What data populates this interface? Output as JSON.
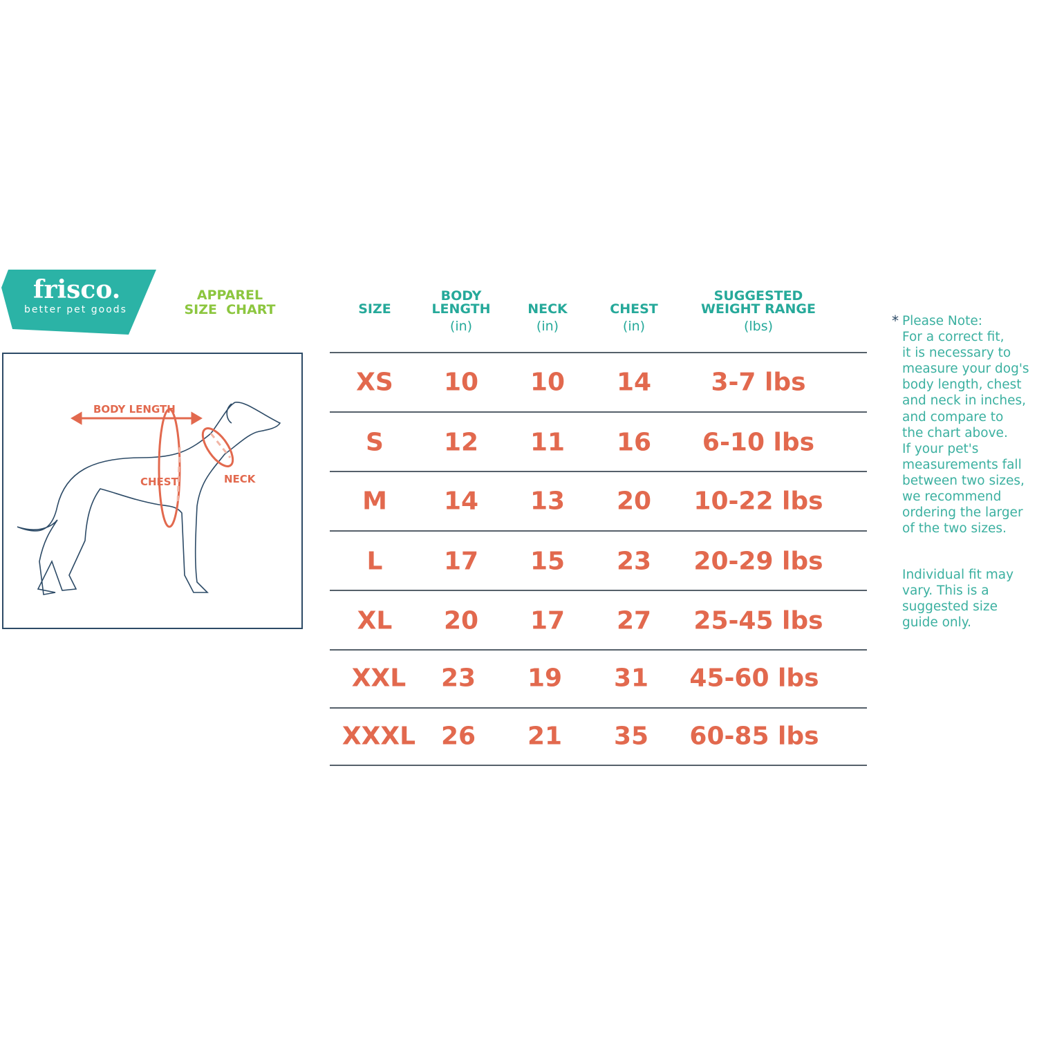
{
  "brand": {
    "name": "frisco.",
    "tagline": "better pet goods",
    "color": "#2bb3a6"
  },
  "title": {
    "line1": "APPAREL",
    "line2": "SIZE  CHART",
    "color": "#8cc63f"
  },
  "diagram": {
    "labels": {
      "body_length": "BODY LENGTH",
      "chest": "CHEST",
      "neck": "NECK"
    },
    "accent": "#e2694e"
  },
  "table": {
    "headers": [
      {
        "title": "SIZE",
        "unit": ""
      },
      {
        "title": "BODY LENGTH",
        "unit": "(in)"
      },
      {
        "title": "NECK",
        "unit": "(in)"
      },
      {
        "title": "CHEST",
        "unit": "(in)"
      },
      {
        "title": "SUGGESTED WEIGHT RANGE",
        "unit": "(lbs)"
      }
    ],
    "rows": [
      [
        "XS",
        "10",
        "10",
        "14",
        "3-7 lbs"
      ],
      [
        "S",
        "12",
        "11",
        "16",
        "6-10 lbs"
      ],
      [
        "M",
        "14",
        "13",
        "20",
        "10-22 lbs"
      ],
      [
        "L",
        "17",
        "15",
        "23",
        "20-29 lbs"
      ],
      [
        "XL",
        "20",
        "17",
        "27",
        "25-45 lbs"
      ],
      [
        "XXL",
        "23",
        "19",
        "31",
        "45-60 lbs"
      ],
      [
        "XXXL",
        "26",
        "21",
        "35",
        "60-85 lbs"
      ]
    ]
  },
  "note": {
    "star": "*",
    "lines": [
      "Please Note:",
      "For a correct fit,",
      "it is necessary to",
      "measure your dog's",
      "body length, chest",
      "and neck in inches,",
      "and compare to",
      "the chart above.",
      "If your pet's",
      "measurements fall",
      "between two sizes,",
      "we recommend",
      "ordering the larger",
      "of the two sizes."
    ],
    "disclaimer": [
      "Individual fit may",
      "vary. This is a",
      "suggested size",
      "guide only."
    ]
  }
}
